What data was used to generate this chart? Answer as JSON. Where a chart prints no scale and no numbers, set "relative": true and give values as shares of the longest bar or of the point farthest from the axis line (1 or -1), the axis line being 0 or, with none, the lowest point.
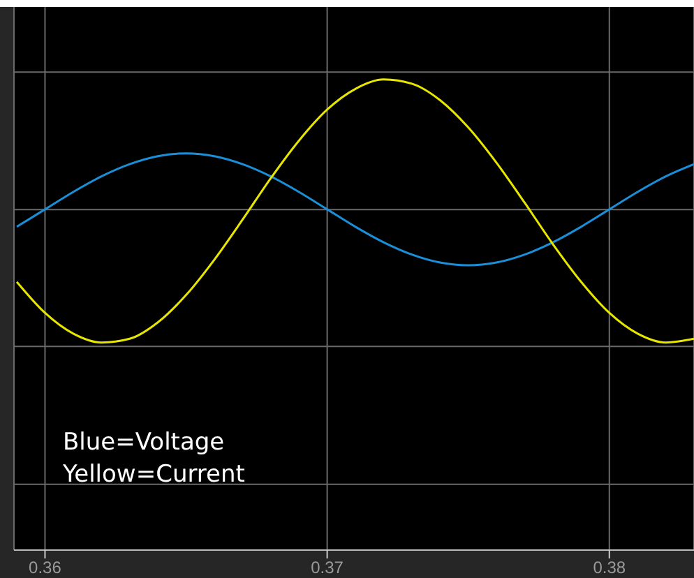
{
  "chart_data": {
    "type": "line",
    "relative": true,
    "x": [
      0.359,
      0.36,
      0.361,
      0.362,
      0.363,
      0.364,
      0.365,
      0.366,
      0.367,
      0.368,
      0.369,
      0.37,
      0.371,
      0.372,
      0.373,
      0.374,
      0.375,
      0.376,
      0.377,
      0.378,
      0.379,
      0.38,
      0.381,
      0.382,
      0.383
    ],
    "series": [
      {
        "color": "#1a8fd8",
        "values": [
          0.687,
          0.724,
          0.761,
          0.794,
          0.82,
          0.837,
          0.843,
          0.837,
          0.82,
          0.794,
          0.761,
          0.724,
          0.687,
          0.654,
          0.628,
          0.611,
          0.605,
          0.611,
          0.628,
          0.654,
          0.687,
          0.724,
          0.761,
          0.794,
          0.82
        ]
      },
      {
        "color": "#e6e600",
        "values": [
          0.57,
          0.504,
          0.46,
          0.441,
          0.449,
          0.484,
          0.542,
          0.617,
          0.702,
          0.79,
          0.87,
          0.936,
          0.98,
          1,
          0.991,
          0.956,
          0.898,
          0.823,
          0.738,
          0.65,
          0.57,
          0.504,
          0.46,
          0.441,
          0.449
        ]
      }
    ],
    "xlim": [
      0.3589,
      0.383
    ],
    "xticks": [
      0.36,
      0.37,
      0.38
    ],
    "grid": true,
    "marker": "none",
    "line_style": "solid",
    "annotations": [
      "Blue=Voltage",
      "Yellow=Current"
    ]
  }
}
